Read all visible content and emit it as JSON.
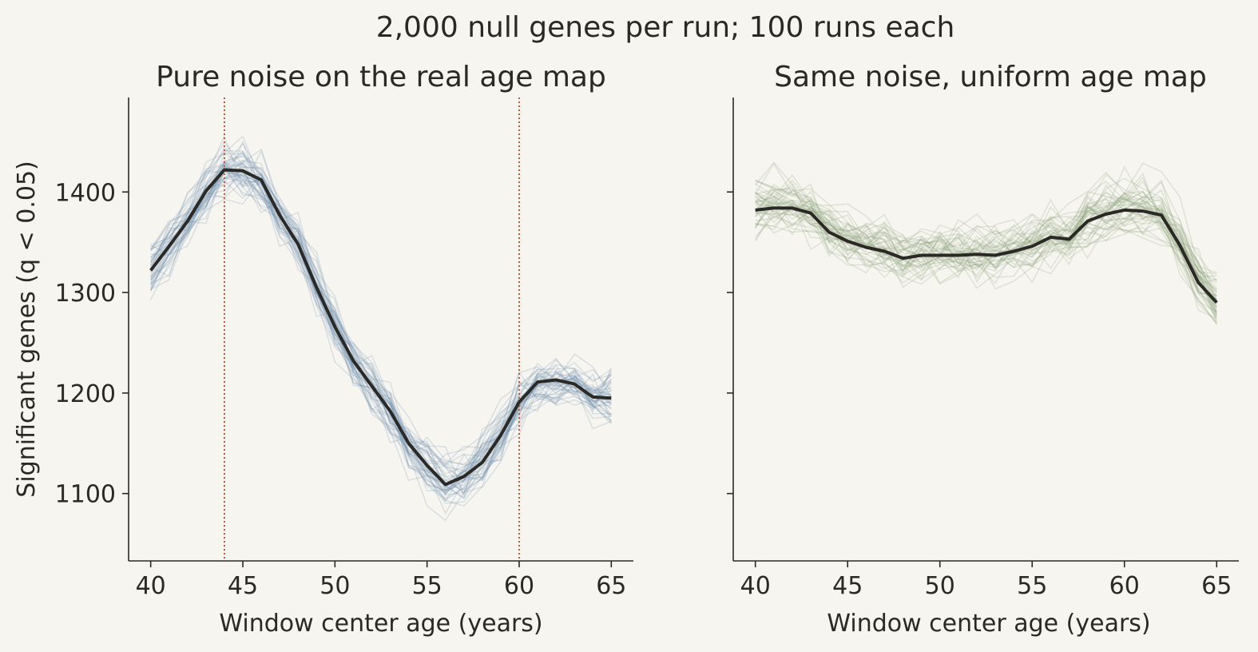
{
  "figure": {
    "suptitle": "2,000 null genes per run; 100 runs each",
    "background": "#f7f5f0",
    "text_color": "#2b2926"
  },
  "chart_data": [
    {
      "type": "line",
      "title": "Pure noise on the real age map",
      "xlabel": "Window center age (years)",
      "ylabel": "Significant genes (q < 0.05)",
      "xlim": [
        38.8,
        66.2
      ],
      "ylim": [
        1033,
        1494
      ],
      "xticks": [
        40,
        45,
        50,
        55,
        60,
        65
      ],
      "yticks": [
        1100,
        1200,
        1300,
        1400
      ],
      "vlines": [
        44,
        60
      ],
      "vline_color": "#c0573a",
      "run_color": "#6f8fae",
      "mean_color": "#2b2926",
      "x": [
        40,
        41,
        42,
        43,
        44,
        45,
        46,
        47,
        48,
        49,
        50,
        51,
        52,
        53,
        54,
        55,
        56,
        57,
        58,
        59,
        60,
        61,
        62,
        63,
        64,
        65
      ],
      "series": [
        {
          "values": [
            1322,
            1346,
            1371,
            1401,
            1422,
            1421,
            1412,
            1377,
            1348,
            1305,
            1266,
            1232,
            1207,
            1182,
            1150,
            1128,
            1109,
            1117,
            1131,
            1158,
            1191,
            1211,
            1213,
            1209,
            1196,
            1195
          ]
        }
      ]
    },
    {
      "type": "line",
      "title": "Same noise, uniform age map",
      "xlabel": "Window center age (years)",
      "ylabel": "",
      "xlim": [
        38.8,
        66.2
      ],
      "ylim": [
        1033,
        1494
      ],
      "xticks": [
        40,
        45,
        50,
        55,
        60,
        65
      ],
      "yticks": [
        1100,
        1200,
        1300,
        1400
      ],
      "run_color": "#8a9f78",
      "mean_color": "#2b2926",
      "x": [
        40,
        41,
        42,
        43,
        44,
        45,
        46,
        47,
        48,
        49,
        50,
        51,
        52,
        53,
        54,
        55,
        56,
        57,
        58,
        59,
        60,
        61,
        62,
        63,
        64,
        65
      ],
      "series": [
        {
          "values": [
            1382,
            1384,
            1384,
            1379,
            1360,
            1351,
            1345,
            1341,
            1334,
            1337,
            1337,
            1337,
            1338,
            1337,
            1341,
            1346,
            1355,
            1353,
            1371,
            1378,
            1382,
            1381,
            1377,
            1347,
            1310,
            1290
          ]
        }
      ]
    }
  ]
}
